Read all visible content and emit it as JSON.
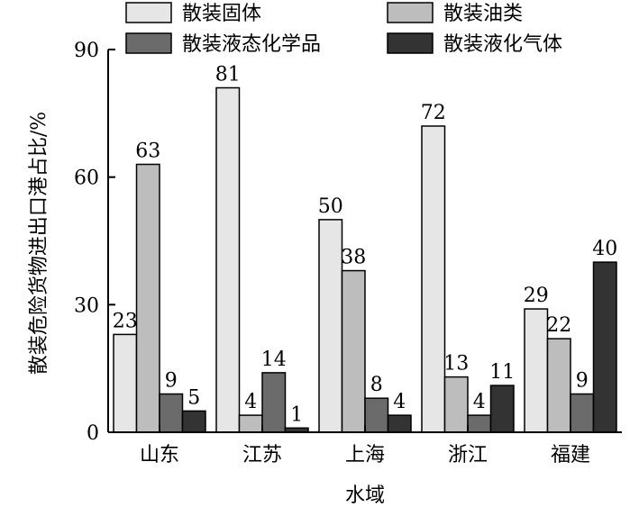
{
  "chart_data": {
    "type": "bar",
    "xlabel": "水域",
    "ylabel": "散装危险货物进出口港占比/%",
    "ylim": [
      0,
      90
    ],
    "yticks": [
      0,
      30,
      60,
      90
    ],
    "categories": [
      "山东",
      "江苏",
      "上海",
      "浙江",
      "福建"
    ],
    "series": [
      {
        "name": "散装固体",
        "color": "#e6e6e6",
        "values": [
          23,
          81,
          50,
          72,
          29
        ]
      },
      {
        "name": "散装油类",
        "color": "#bdbdbd",
        "values": [
          63,
          4,
          38,
          13,
          22
        ]
      },
      {
        "name": "散装液态化学品",
        "color": "#6b6b6b",
        "values": [
          9,
          14,
          8,
          4,
          9
        ]
      },
      {
        "name": "散装液化气体",
        "color": "#333333",
        "values": [
          5,
          1,
          4,
          11,
          40
        ]
      }
    ],
    "legend_position": "top",
    "grid": false
  }
}
